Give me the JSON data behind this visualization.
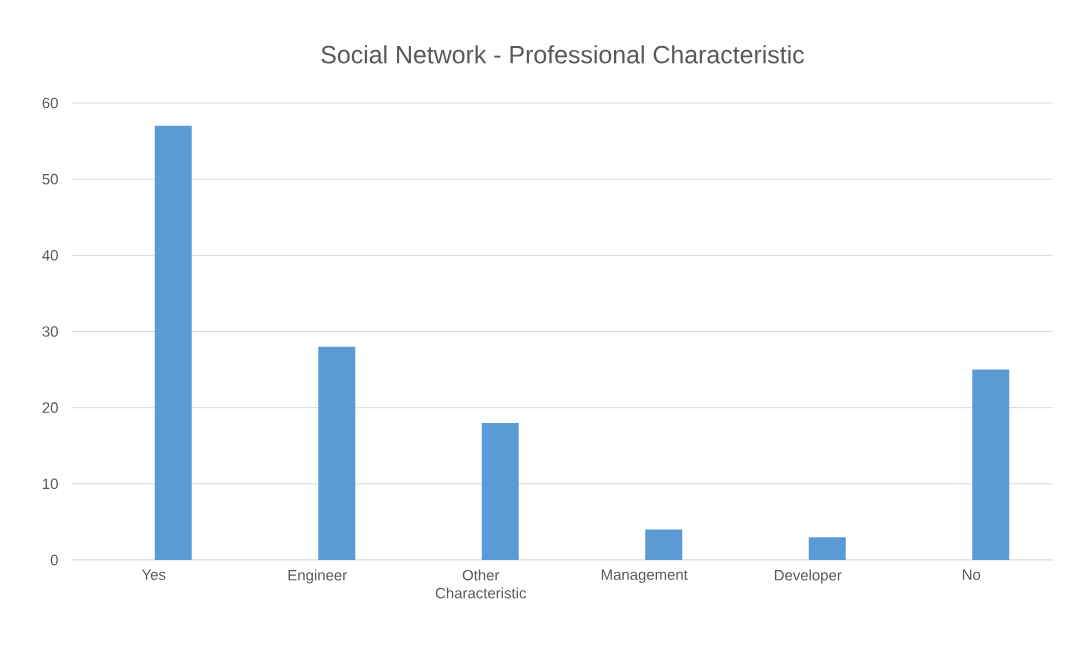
{
  "chart_data": {
    "type": "bar",
    "title": "Social Network - Professional Characteristic",
    "categories": [
      "Yes",
      "Engineer",
      "Other Characteristic",
      "Management",
      "Developer",
      "No"
    ],
    "values": [
      57,
      28,
      18,
      4,
      3,
      25
    ],
    "color": "#5b9bd5",
    "ylim": [
      0,
      60
    ],
    "yticks": [
      0,
      10,
      20,
      30,
      40,
      50,
      60
    ],
    "grid": "y"
  }
}
